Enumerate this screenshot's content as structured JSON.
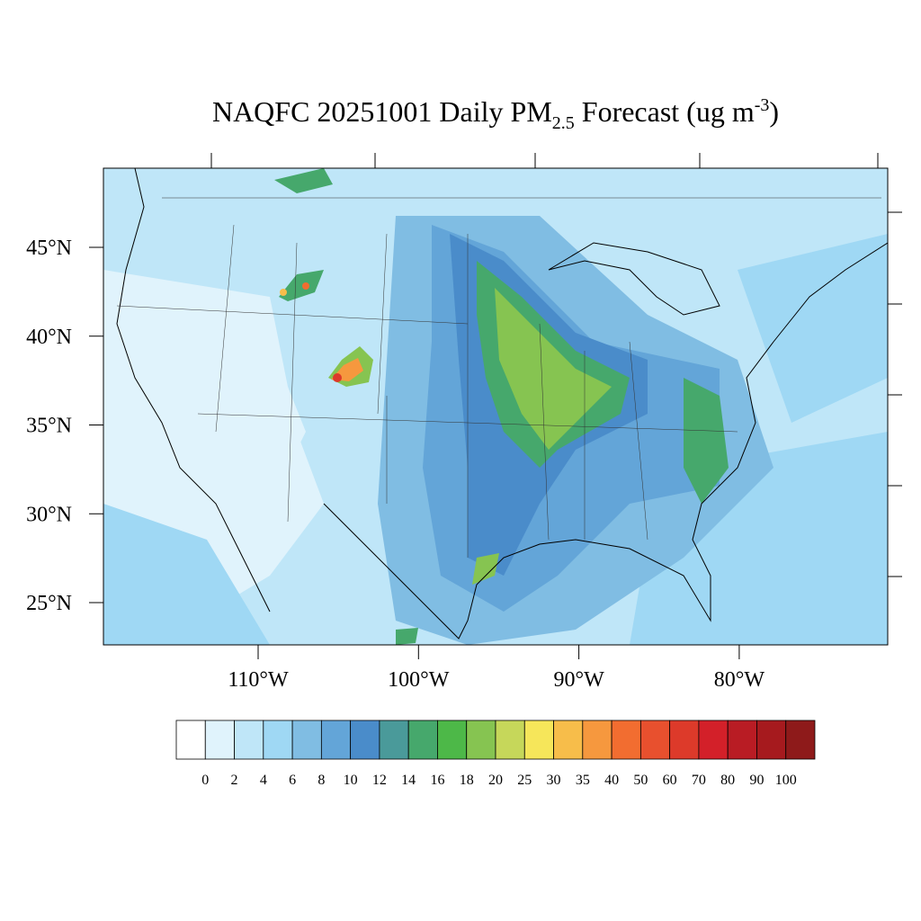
{
  "title_parts": [
    "NAQFC 20251001 Daily PM",
    "2.5",
    " Forecast (ug m",
    "-3",
    ")"
  ],
  "lat_ticks": [
    {
      "value": 45,
      "label": "45°N"
    },
    {
      "value": 40,
      "label": "40°N"
    },
    {
      "value": 35,
      "label": "35°N"
    },
    {
      "value": 30,
      "label": "30°N"
    },
    {
      "value": 25,
      "label": "25°N"
    }
  ],
  "lon_ticks": [
    {
      "value": -110,
      "label": "110°W"
    },
    {
      "value": -100,
      "label": "100°W"
    },
    {
      "value": -90,
      "label": "90°W"
    },
    {
      "value": -80,
      "label": "80°W"
    }
  ],
  "colorbar": {
    "levels": [
      0,
      2,
      4,
      6,
      8,
      10,
      12,
      14,
      16,
      18,
      20,
      25,
      30,
      35,
      40,
      50,
      60,
      70,
      80,
      90,
      100
    ],
    "colors": [
      "#ffffff",
      "#e0f3fc",
      "#bfe6f8",
      "#9fd8f4",
      "#80bde3",
      "#63a5d8",
      "#4a8cca",
      "#4a9a9a",
      "#46a86c",
      "#4db848",
      "#86c451",
      "#c6d75a",
      "#f6e65a",
      "#f7bd4a",
      "#f6983e",
      "#f26d30",
      "#e8502e",
      "#dd3a2a",
      "#d32029",
      "#b91c24",
      "#a61a1e",
      "#8e1a1a"
    ]
  }
}
